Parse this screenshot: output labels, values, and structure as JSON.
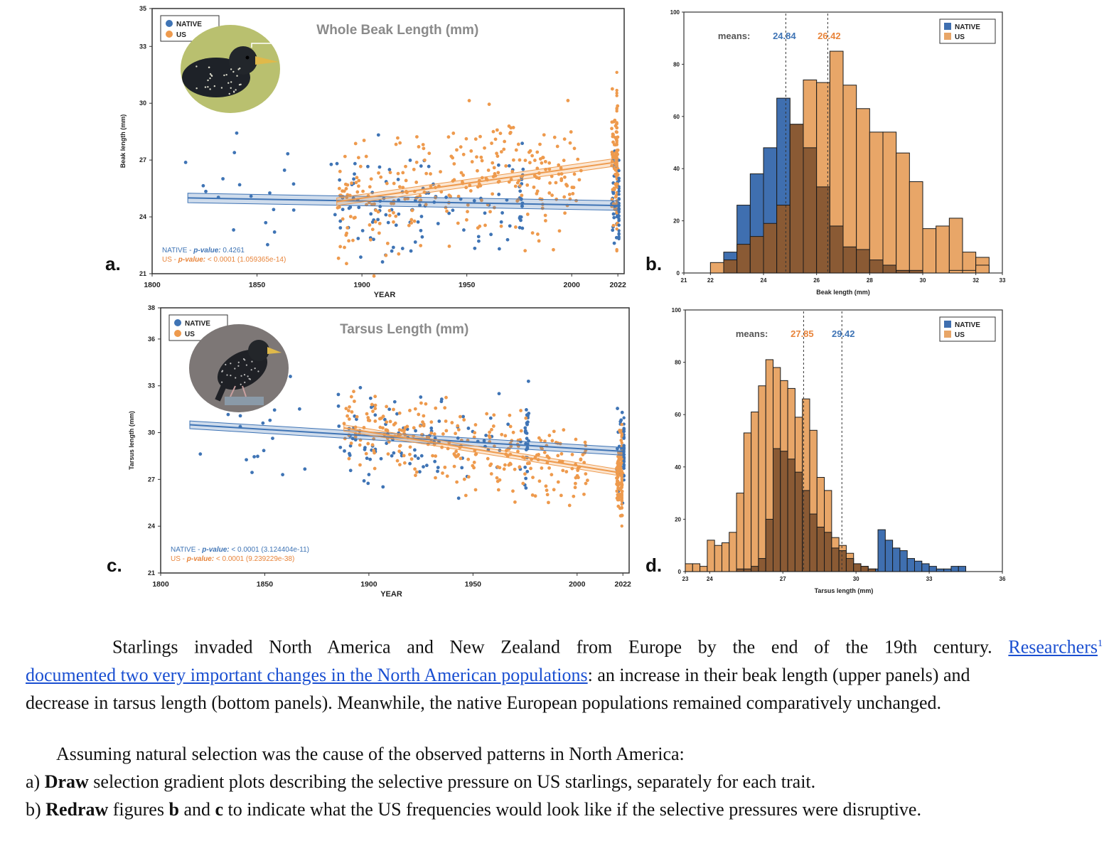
{
  "colors": {
    "native": "#3f74b5",
    "us": "#ee9a4d",
    "us_bar": "#e8a668",
    "native_bar": "#3f6fb0",
    "overlap": "#8a5a34",
    "text_native": "#3f74b5",
    "text_us": "#e8843a"
  },
  "chart_data": [
    {
      "panel": "a.",
      "type": "scatter",
      "title": "Whole Beak Length (mm)",
      "xlabel": "YEAR",
      "ylabel": "Beak length (mm)",
      "xlim": [
        1800,
        2025
      ],
      "ylim": [
        21,
        35
      ],
      "xticks": [
        "1800",
        "1850",
        "1900",
        "1950",
        "2000",
        "2022"
      ],
      "yticks": [
        "21",
        "24",
        "27",
        "30",
        "33",
        "35"
      ],
      "legend": [
        "NATIVE",
        "US"
      ],
      "trend": {
        "native": [
          [
            1817,
            25.0
          ],
          [
            2022,
            24.6
          ]
        ],
        "us": [
          [
            1888,
            24.8
          ],
          [
            2022,
            26.9
          ]
        ]
      },
      "pvalues": {
        "native": "0.4261",
        "us": "< 0.0001 (1.059365e-14)"
      },
      "pvalue_labels": {
        "native_name": "NATIVE",
        "us_name": "US",
        "dash": "-",
        "word": "p-value:"
      },
      "series": [
        {
          "name": "NATIVE"
        },
        {
          "name": "US"
        }
      ]
    },
    {
      "panel": "b.",
      "type": "bar",
      "xlabel": "Beak length (mm)",
      "xlim": [
        21,
        33
      ],
      "ylim": [
        0,
        100
      ],
      "xticks": [
        "21",
        "22",
        "24",
        "26",
        "28",
        "30",
        "32",
        "33"
      ],
      "yticks": [
        "0",
        "20",
        "40",
        "60",
        "80",
        "100"
      ],
      "legend": [
        "NATIVE",
        "US"
      ],
      "means_label": "means:",
      "means": {
        "native": "24.84",
        "us": "26.42"
      },
      "mean_values": {
        "native": 24.84,
        "us": 26.42
      },
      "bin_start": 22.0,
      "bin_width": 0.5,
      "series": [
        {
          "name": "NATIVE",
          "values": [
            0,
            8,
            26,
            38,
            48,
            67,
            57,
            48,
            33,
            18,
            10,
            9,
            5,
            3,
            1,
            1,
            0,
            0,
            0,
            0,
            0
          ]
        },
        {
          "name": "US",
          "values": [
            4,
            5,
            11,
            14,
            19,
            26,
            57,
            74,
            73,
            85,
            72,
            63,
            54,
            54,
            46,
            35,
            17,
            18,
            21,
            8,
            6
          ]
        }
      ],
      "extra_us": [
        {
          "x": 31.0,
          "v": 1
        },
        {
          "x": 31.5,
          "v": 1
        },
        {
          "x": 32.0,
          "v": 3
        }
      ]
    },
    {
      "panel": "c.",
      "type": "scatter",
      "title": "Tarsus Length (mm)",
      "xlabel": "YEAR",
      "ylabel": "Tarsus length (mm)",
      "xlim": [
        1800,
        2025
      ],
      "ylim": [
        21,
        38
      ],
      "xticks": [
        "1800",
        "1850",
        "1900",
        "1950",
        "2000",
        "2022"
      ],
      "yticks": [
        "21",
        "24",
        "27",
        "30",
        "33",
        "36",
        "38"
      ],
      "legend": [
        "NATIVE",
        "US"
      ],
      "trend": {
        "native": [
          [
            1814,
            30.5
          ],
          [
            2022,
            28.8
          ]
        ],
        "us": [
          [
            1888,
            30.3
          ],
          [
            2022,
            27.4
          ]
        ]
      },
      "pvalues": {
        "native": "< 0.0001 (3.124404e-11)",
        "us": "< 0.0001 (9.239229e-38)"
      },
      "pvalue_labels": {
        "native_name": "NATIVE",
        "us_name": "US",
        "dash": "-",
        "word": "p-value:"
      },
      "series": [
        {
          "name": "NATIVE"
        },
        {
          "name": "US"
        }
      ]
    },
    {
      "panel": "d.",
      "type": "bar",
      "xlabel": "Tarsus length (mm)",
      "xlim": [
        23,
        36
      ],
      "ylim": [
        0,
        100
      ],
      "xticks": [
        "23",
        "24",
        "27",
        "30",
        "33",
        "36"
      ],
      "yticks": [
        "0",
        "20",
        "40",
        "60",
        "80",
        "100"
      ],
      "legend": [
        "NATIVE",
        "US"
      ],
      "means_label": "means:",
      "means": {
        "us": "27.85",
        "native": "29.42"
      },
      "mean_values": {
        "us": 27.85,
        "native": 29.42
      },
      "bin_start": 23.0,
      "bin_width": 0.3,
      "series": [
        {
          "name": "NATIVE",
          "values": [
            0,
            0,
            0,
            0,
            0,
            0,
            0,
            1,
            1,
            2,
            5,
            20,
            47,
            46,
            43,
            38,
            31,
            22,
            17,
            15,
            9,
            8,
            5,
            3,
            2,
            1,
            1,
            2,
            2,
            1,
            0,
            0,
            0,
            0,
            0,
            0,
            0,
            0,
            0,
            0,
            0,
            0,
            0
          ]
        },
        {
          "name": "US",
          "values": [
            3,
            3,
            2,
            12,
            10,
            11,
            15,
            30,
            53,
            61,
            71,
            81,
            78,
            73,
            70,
            59,
            66,
            54,
            36,
            31,
            13,
            10,
            7,
            3,
            2,
            1,
            0,
            0,
            0,
            0,
            0,
            0,
            0,
            0,
            0,
            0,
            0,
            0,
            0,
            0,
            0,
            0,
            0
          ]
        }
      ],
      "native_tail": [
        {
          "x": 30.9,
          "v": 16
        },
        {
          "x": 31.2,
          "v": 12
        },
        {
          "x": 31.5,
          "v": 9
        },
        {
          "x": 31.8,
          "v": 8
        },
        {
          "x": 32.1,
          "v": 5
        },
        {
          "x": 32.4,
          "v": 4
        },
        {
          "x": 32.7,
          "v": 3
        },
        {
          "x": 33.0,
          "v": 2
        },
        {
          "x": 33.3,
          "v": 1
        },
        {
          "x": 33.6,
          "v": 1
        },
        {
          "x": 33.9,
          "v": 2
        },
        {
          "x": 34.2,
          "v": 2
        }
      ]
    }
  ],
  "panel_letters": [
    "a.",
    "b.",
    "c.",
    "d."
  ],
  "text": {
    "p1_a": "Starlings invaded North America and New Zealand from Europe by the end of the 19th century.",
    "p1_link": "Researchers",
    "p1_sup": "1",
    "p1_link2": "documented two very important changes in the North American populations",
    "p1_b": ": an increase in their beak length (upper panels) and",
    "p1_c": "decrease in tarsus length (bottom panels). Meanwhile, the native European populations remained comparatively unchanged.",
    "p2": "Assuming natural selection was the cause of the observed patterns in North America:",
    "qa_prefix": "a)",
    "qa_bold": "Draw",
    "qa_rest": "selection gradient plots describing the selective pressure on US starlings, separately for each trait.",
    "qb_prefix": "b)",
    "qb_bold": "Redraw",
    "qb_mid1": "figures",
    "qb_b": "b",
    "qb_and": "and",
    "qb_c": "c",
    "qb_rest": "to indicate what the US frequencies would look like if the selective pressures were disruptive."
  }
}
